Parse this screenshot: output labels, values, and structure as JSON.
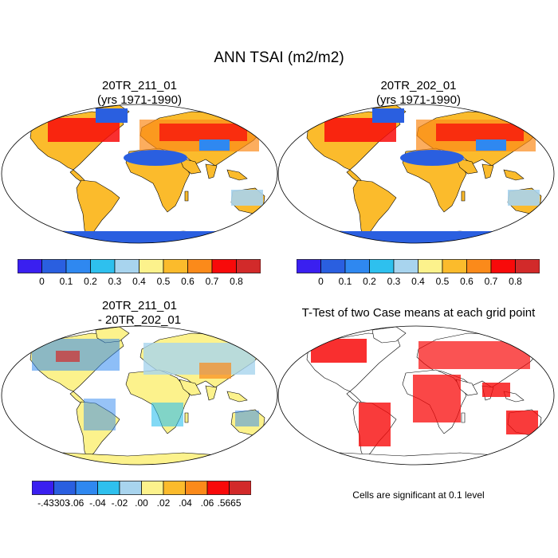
{
  "figure": {
    "title": "ANN TSAI (m2/m2)",
    "panels": [
      {
        "title_line1": "20TR_211_01",
        "title_line2": "(yrs 1971-1990)"
      },
      {
        "title_line1": "20TR_202_01",
        "title_line2": "(yrs 1971-1990)"
      },
      {
        "title_line1": "20TR_211_01",
        "title_line2": "- 20TR_202_01"
      },
      {
        "title_line1": "T-Test of two Case means at each grid point",
        "title_line2": ""
      }
    ],
    "significance_note": "Cells are significant at 0.1 level"
  },
  "colorbars": {
    "abs": {
      "colors": [
        "#3a1ff0",
        "#2a5fe0",
        "#2f88f0",
        "#2ec0ee",
        "#a8d4ee",
        "#fcf28c",
        "#fbbb2c",
        "#fb8a1a",
        "#f80a0a",
        "#d22a2a"
      ],
      "labels": [
        "0",
        "0.1",
        "0.2",
        "0.3",
        "0.4",
        "0.5",
        "0.6",
        "0.7",
        "0.8"
      ]
    },
    "diff": {
      "colors": [
        "#3a1ff0",
        "#2a5fe0",
        "#2f88f0",
        "#2ec0ee",
        "#a8d4ee",
        "#fcf28c",
        "#fbbb2c",
        "#fb8a1a",
        "#f80a0a",
        "#d22a2a"
      ],
      "labels": [
        "-.43303",
        "-.06",
        "-.04",
        "-.02",
        ".00",
        ".02",
        ".04",
        ".06",
        ".5665"
      ]
    }
  },
  "colors": {
    "antarctica_abs": "#2a5fe0",
    "sahara_abs": "#2a5fe0",
    "antarctica_diff": "#fcf28c",
    "significant": "#f80a0a",
    "outline": "#000000"
  }
}
